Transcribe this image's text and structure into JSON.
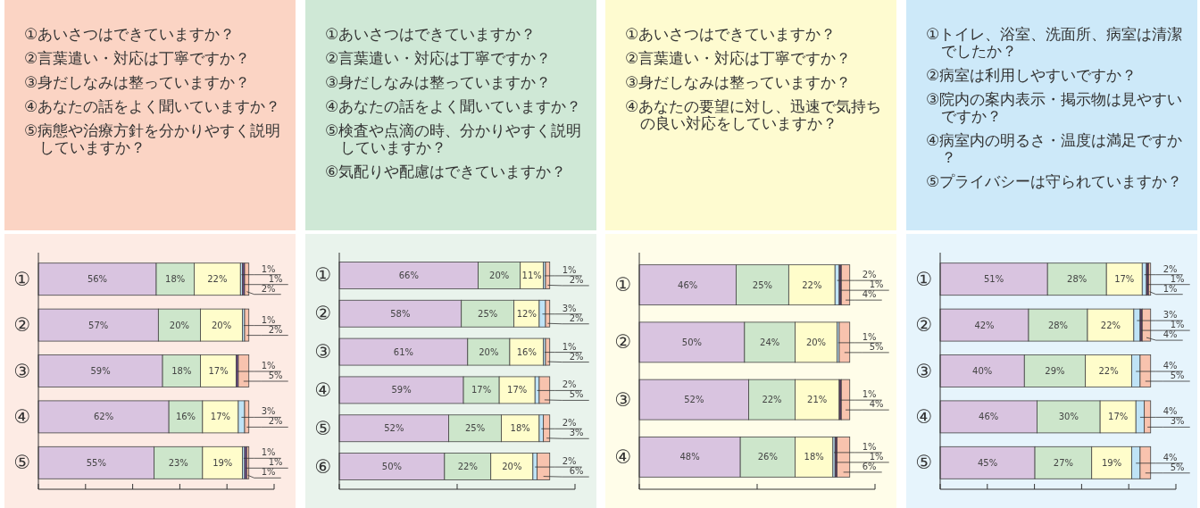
{
  "chart_data": [
    {
      "type": "bar",
      "orientation": "horizontal",
      "stacked": true,
      "tick_labels": "y",
      "annotations": [
        "①あいさつはできていますか？",
        "②言葉遣い・対応は丁寧ですか？",
        "③身だしなみは整っていますか？",
        "④あなたの話をよく聞いていますか？",
        "⑤病態や治療方針を分かりやすく説明していますか？"
      ],
      "categories": [
        "①",
        "②",
        "③",
        "④",
        "⑤"
      ],
      "xlim": [
        0,
        112
      ],
      "xticks": [
        {
          "value": 0,
          "label": null
        },
        {
          "value": 22.4,
          "label": null
        },
        {
          "value": 44.8,
          "label": null
        },
        {
          "value": 67.2,
          "label": null
        },
        {
          "value": 89.6,
          "label": null
        },
        {
          "value": 112,
          "label": null
        }
      ],
      "series": [
        {
          "color": "#d9c4e0",
          "values": [
            56,
            57,
            59,
            62,
            55
          ],
          "value_labels": [
            "56%",
            "57%",
            "59%",
            "62%",
            "55%"
          ]
        },
        {
          "color": "#cde6cb",
          "values": [
            18,
            20,
            18,
            16,
            23
          ],
          "value_labels": [
            "18%",
            "20%",
            "18%",
            "16%",
            "23%"
          ]
        },
        {
          "color": "#fffdcb",
          "values": [
            22,
            20,
            17,
            17,
            19
          ],
          "value_labels": [
            "22%",
            "20%",
            "17%",
            "17%",
            "19%"
          ]
        },
        {
          "color": "#bfe3f6",
          "values": [
            1,
            1,
            null,
            3,
            1
          ],
          "value_labels": [
            "1%",
            "1%",
            null,
            "3%",
            "1%"
          ]
        },
        {
          "color": "#6b4a86",
          "values": [
            1,
            null,
            1,
            null,
            1
          ],
          "value_labels": [
            "1%",
            null,
            "1%",
            null,
            "1%"
          ]
        },
        {
          "color": "#f8c3ae",
          "values": [
            2,
            2,
            5,
            2,
            1
          ],
          "value_labels": [
            "2%",
            "2%",
            "5%",
            "2%",
            "1%"
          ]
        }
      ]
    },
    {
      "type": "bar",
      "orientation": "horizontal",
      "stacked": true,
      "tick_labels": "y",
      "annotations": [
        "①あいさつはできていますか？",
        "②言葉遣い・対応は丁寧ですか？",
        "③身だしなみは整っていますか？",
        "④あなたの話をよく聞いていますか？",
        "⑤検査や点滴の時、分かりやすく説明していますか？",
        "⑥気配りや配慮はできていますか？"
      ],
      "categories": [
        "①",
        "②",
        "③",
        "④",
        "⑤",
        "⑥"
      ],
      "xlim": [
        0,
        112
      ],
      "xticks": [
        {
          "value": 0,
          "label": null
        },
        {
          "value": 56,
          "label": null
        },
        {
          "value": 112,
          "label": null
        }
      ],
      "series": [
        {
          "color": "#d9c4e0",
          "values": [
            66,
            58,
            61,
            59,
            52,
            50
          ],
          "value_labels": [
            "66%",
            "58%",
            "61%",
            "59%",
            "52%",
            "50%"
          ]
        },
        {
          "color": "#cde6cb",
          "values": [
            20,
            25,
            20,
            17,
            25,
            22
          ],
          "value_labels": [
            "20%",
            "25%",
            "20%",
            "17%",
            "25%",
            "22%"
          ]
        },
        {
          "color": "#fffdcb",
          "values": [
            11,
            12,
            16,
            17,
            18,
            20
          ],
          "value_labels": [
            "11%",
            "12%",
            "16%",
            "17%",
            "18%",
            "20%"
          ]
        },
        {
          "color": "#bfe3f6",
          "values": [
            1,
            3,
            1,
            2,
            2,
            2
          ],
          "value_labels": [
            "1%",
            "3%",
            "1%",
            "2%",
            "2%",
            "2%"
          ]
        },
        {
          "color": "#f8c3ae",
          "values": [
            2,
            2,
            2,
            5,
            3,
            6
          ],
          "value_labels": [
            "2%",
            "2%",
            "2%",
            "5%",
            "3%",
            "6%"
          ]
        }
      ]
    },
    {
      "type": "bar",
      "orientation": "horizontal",
      "stacked": true,
      "tick_labels": "y",
      "annotations": [
        "①あいさつはできていますか？",
        "②言葉遣い・対応は丁寧ですか？",
        "③身だしなみは整っていますか？",
        "④あなたの要望に対し、迅速で気持ちの良い対応をしていますか？"
      ],
      "categories": [
        "①",
        "②",
        "③",
        "④"
      ],
      "xlim": [
        0,
        112
      ],
      "xticks": [
        {
          "value": 0,
          "label": null
        },
        {
          "value": 56,
          "label": null
        },
        {
          "value": 112,
          "label": null
        }
      ],
      "series": [
        {
          "color": "#d9c4e0",
          "values": [
            46,
            50,
            52,
            48
          ],
          "value_labels": [
            "46%",
            "50%",
            "52%",
            "48%"
          ]
        },
        {
          "color": "#cde6cb",
          "values": [
            25,
            24,
            22,
            26
          ],
          "value_labels": [
            "25%",
            "24%",
            "22%",
            "26%"
          ]
        },
        {
          "color": "#fffdcb",
          "values": [
            22,
            20,
            21,
            18
          ],
          "value_labels": [
            "22%",
            "20%",
            "21%",
            "18%"
          ]
        },
        {
          "color": "#bfe3f6",
          "values": [
            2,
            1,
            null,
            1
          ],
          "value_labels": [
            "2%",
            "1%",
            null,
            "1%"
          ]
        },
        {
          "color": "#5a3a5e",
          "values": [
            1,
            null,
            1,
            1
          ],
          "value_labels": [
            "1%",
            null,
            "1%",
            "1%"
          ]
        },
        {
          "color": "#f8c3ae",
          "values": [
            4,
            5,
            4,
            6
          ],
          "value_labels": [
            "4%",
            "5%",
            "4%",
            "6%"
          ]
        }
      ]
    },
    {
      "type": "bar",
      "orientation": "horizontal",
      "stacked": true,
      "tick_labels": "y",
      "annotations": [
        "①トイレ、浴室、洗面所、病室は清潔でしたか？",
        "②病室は利用しやすいですか？",
        "③院内の案内表示・掲示物は見やすいですか？",
        "④病室内の明るさ・温度は満足ですか？",
        "⑤プライバシーは守られていますか？"
      ],
      "categories": [
        "①",
        "②",
        "③",
        "④",
        "⑤"
      ],
      "xlim": [
        0,
        112
      ],
      "xticks": [
        {
          "value": 0,
          "label": null
        },
        {
          "value": 22.4,
          "label": null
        },
        {
          "value": 44.8,
          "label": null
        },
        {
          "value": 67.2,
          "label": null
        },
        {
          "value": 89.6,
          "label": null
        },
        {
          "value": 112,
          "label": null
        }
      ],
      "series": [
        {
          "color": "#d9c4e0",
          "values": [
            51,
            42,
            40,
            46,
            45
          ],
          "value_labels": [
            "51%",
            "42%",
            "40%",
            "46%",
            "45%"
          ]
        },
        {
          "color": "#cde6cb",
          "values": [
            28,
            28,
            29,
            30,
            27
          ],
          "value_labels": [
            "28%",
            "28%",
            "29%",
            "30%",
            "27%"
          ]
        },
        {
          "color": "#fffdcb",
          "values": [
            17,
            22,
            22,
            17,
            19
          ],
          "value_labels": [
            "17%",
            "22%",
            "22%",
            "17%",
            "19%"
          ]
        },
        {
          "color": "#bfe3f6",
          "values": [
            2,
            3,
            4,
            4,
            4
          ],
          "value_labels": [
            "2%",
            "3%",
            "4%",
            "4%",
            "4%"
          ]
        },
        {
          "color": "#5a3a5e",
          "values": [
            1,
            1,
            null,
            null,
            null
          ],
          "value_labels": [
            "1%",
            "1%",
            null,
            null,
            null
          ]
        },
        {
          "color": "#f8c3ae",
          "values": [
            1,
            4,
            5,
            3,
            5
          ],
          "value_labels": [
            "1%",
            "4%",
            "5%",
            "3%",
            "5%"
          ]
        }
      ]
    }
  ]
}
